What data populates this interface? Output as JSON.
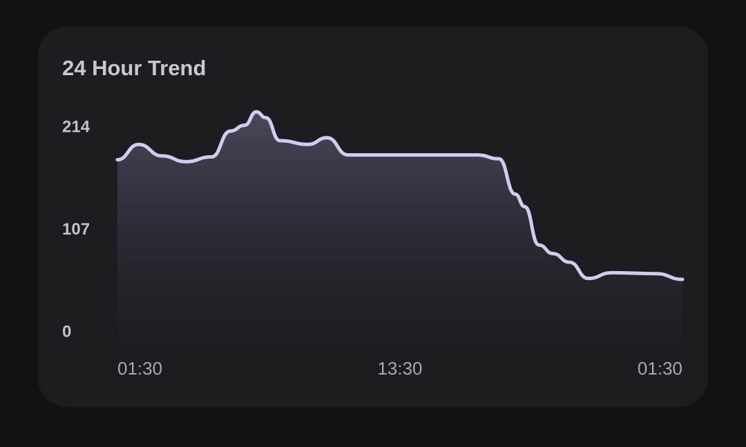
{
  "chart_data": {
    "type": "line",
    "title": "24 Hour Trend",
    "x": [
      0,
      0.9,
      1.9,
      2.9,
      4,
      4.8,
      5.4,
      5.9,
      6.3,
      6.9,
      8.1,
      8.9,
      9.8,
      15.3,
      16.2,
      16.9,
      17.3,
      17.9,
      18.5,
      19.2,
      20,
      21,
      22.9,
      24
    ],
    "values": [
      179,
      195,
      183,
      177,
      182,
      209,
      215,
      229,
      223,
      199,
      195,
      202,
      184,
      184,
      180,
      143,
      130,
      90,
      81,
      72,
      55,
      61,
      60,
      54
    ],
    "color": "#cfcdf0",
    "xlim": [
      0,
      24
    ],
    "xticks": [
      {
        "value": 0,
        "label": "01:30"
      },
      {
        "value": 12,
        "label": "13:30"
      },
      {
        "value": 24,
        "label": "01:30"
      }
    ],
    "ylim": [
      0,
      214
    ],
    "yticks": [
      0,
      107,
      214
    ],
    "grid": false
  }
}
